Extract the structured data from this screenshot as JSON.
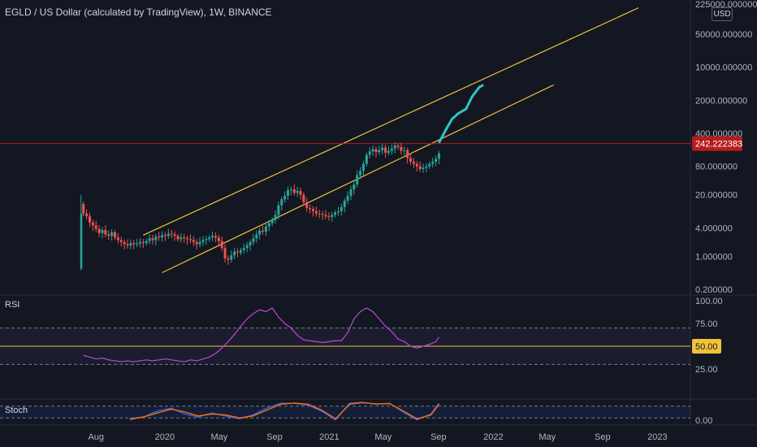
{
  "header": {
    "title": "EGLD / US Dollar (calculated by TradingView), 1W, BINANCE",
    "currency": "USD"
  },
  "colors": {
    "background": "#131722",
    "up_candle": "#26a69a",
    "down_candle": "#ef5350",
    "channel": "#f0c23b",
    "projection": "#2ec4c4",
    "price_line": "#b71c1c",
    "rsi_line": "#c048d8",
    "stoch_k": "#2962ff",
    "stoch_d": "#ff6d00",
    "axis_text": "#b2b5be"
  },
  "chart_data": [
    {
      "type": "candlestick",
      "title": "EGLD / US Dollar (calculated by TradingView), 1W, BINANCE",
      "y_scale": "log",
      "ylim": [
        0.2,
        225000
      ],
      "y_tick_labels": [
        "225000.000000",
        "50000.000000",
        "10000.000000",
        "2000.000000",
        "400.000000",
        "80.000000",
        "20.000000",
        "4.000000",
        "1.000000",
        "0.200000"
      ],
      "x_tick_labels": [
        "Aug",
        "2020",
        "May",
        "Sep",
        "2021",
        "May",
        "Sep",
        "2022",
        "May",
        "Sep",
        "2023"
      ],
      "last_price_label": "242.222383",
      "last_price": 242.22,
      "grid": false,
      "x_range": [
        "2019-06-20",
        "2023-03-01"
      ],
      "series": [
        {
          "kind": "candles",
          "x": [
            "2019-07-04",
            "2019-07-11",
            "2019-07-18",
            "2019-07-25",
            "2019-08-01",
            "2019-08-08",
            "2019-08-15",
            "2019-08-22",
            "2019-08-29",
            "2019-09-05",
            "2019-09-12",
            "2019-09-19",
            "2019-09-26",
            "2019-10-03",
            "2019-10-10",
            "2019-10-17",
            "2019-10-24",
            "2019-10-31",
            "2019-11-07",
            "2019-11-14",
            "2019-11-21",
            "2019-11-28",
            "2019-12-05",
            "2019-12-12",
            "2019-12-19",
            "2019-12-26",
            "2020-01-02",
            "2020-01-09",
            "2020-01-16",
            "2020-01-23",
            "2020-01-30",
            "2020-02-06",
            "2020-02-13",
            "2020-02-20",
            "2020-02-27",
            "2020-03-05",
            "2020-03-12",
            "2020-03-19",
            "2020-03-26",
            "2020-04-02",
            "2020-04-09",
            "2020-04-16",
            "2020-04-23",
            "2020-04-30",
            "2020-05-07",
            "2020-05-14",
            "2020-05-21",
            "2020-05-28",
            "2020-06-04",
            "2020-06-11",
            "2020-06-18",
            "2020-06-25",
            "2020-07-02",
            "2020-07-09",
            "2020-07-16",
            "2020-07-23",
            "2020-07-30",
            "2020-08-06",
            "2020-08-13",
            "2020-08-20",
            "2020-08-27",
            "2020-09-03",
            "2020-09-10",
            "2020-09-17",
            "2020-09-24",
            "2020-10-01",
            "2020-10-08",
            "2020-10-15",
            "2020-10-22",
            "2020-10-29",
            "2020-11-05",
            "2020-11-12",
            "2020-11-19",
            "2020-11-26",
            "2020-12-03",
            "2020-12-10",
            "2020-12-17",
            "2020-12-24",
            "2020-12-31",
            "2021-01-07",
            "2021-01-14",
            "2021-01-21",
            "2021-01-28",
            "2021-02-04",
            "2021-02-11",
            "2021-02-18",
            "2021-02-25",
            "2021-03-04",
            "2021-03-11",
            "2021-03-18",
            "2021-03-25",
            "2021-04-01",
            "2021-04-08",
            "2021-04-15",
            "2021-04-22",
            "2021-04-29",
            "2021-05-06",
            "2021-05-13",
            "2021-05-20",
            "2021-05-27",
            "2021-06-03",
            "2021-06-10",
            "2021-06-17",
            "2021-06-24",
            "2021-07-01",
            "2021-07-08",
            "2021-07-15",
            "2021-07-22",
            "2021-07-29",
            "2021-08-05",
            "2021-08-12",
            "2021-08-19",
            "2021-08-26",
            "2021-09-02"
          ],
          "close": [
            8.0,
            7.0,
            5.2,
            4.5,
            3.8,
            3.1,
            3.6,
            2.9,
            2.7,
            3.2,
            2.5,
            2.2,
            2.0,
            1.8,
            1.7,
            1.9,
            1.8,
            1.85,
            2.0,
            1.9,
            2.1,
            2.4,
            2.2,
            2.6,
            2.5,
            2.8,
            2.7,
            3.0,
            2.9,
            2.7,
            2.3,
            2.5,
            2.4,
            2.3,
            2.2,
            2.0,
            1.8,
            2.0,
            2.2,
            2.3,
            2.5,
            2.7,
            2.5,
            2.1,
            1.5,
            0.9,
            0.85,
            1.05,
            1.25,
            1.2,
            1.35,
            1.5,
            1.7,
            2.0,
            2.4,
            2.9,
            3.5,
            3.3,
            4.3,
            5.0,
            5.9,
            7.5,
            12.0,
            16.0,
            19.0,
            25.0,
            26.0,
            22.0,
            24.0,
            20.0,
            14.0,
            10.5,
            10.0,
            9.0,
            8.0,
            7.8,
            7.5,
            7.0,
            6.8,
            7.5,
            8.5,
            9.0,
            11.0,
            15.0,
            19.0,
            26.0,
            33.0,
            52.0,
            64.0,
            90.0,
            140.0,
            165.0,
            185.0,
            160.0,
            175.0,
            200.0,
            155.0,
            170.0,
            190.0,
            220.0,
            205.0,
            170.0,
            175.0,
            120.0,
            100.0,
            90.0,
            80.0,
            70.0,
            75.0,
            80.0,
            90.0,
            100.0,
            115.0,
            150.0
          ]
        },
        {
          "kind": "channel",
          "name": "",
          "upper": [
            [
              "2019-11-14",
              2.8
            ],
            [
              "2022-11-20",
              180000
            ]
          ],
          "lower": [
            [
              "2019-12-26",
              0.45
            ],
            [
              "2022-05-15",
              4200
            ]
          ]
        },
        {
          "kind": "projection",
          "name": "",
          "x": [
            "2021-09-02",
            "2021-09-16",
            "2021-10-01",
            "2021-10-15",
            "2021-11-01",
            "2021-11-15",
            "2021-12-01",
            "2021-12-10"
          ],
          "y": [
            250,
            450,
            800,
            1050,
            1300,
            2400,
            3800,
            4200
          ]
        }
      ]
    },
    {
      "type": "line",
      "label": "RSI",
      "ylim": [
        0,
        100
      ],
      "y_tick_labels": [
        "100.00",
        "75.00",
        "50.00",
        "25.00"
      ],
      "levels": [
        70,
        50,
        30
      ],
      "midline_label": "50.00",
      "series": [
        {
          "name": "",
          "x": [
            "2019-07-04",
            "2019-07-18",
            "2019-08-01",
            "2019-08-15",
            "2019-08-29",
            "2019-09-12",
            "2019-09-26",
            "2019-10-10",
            "2019-10-24",
            "2019-11-07",
            "2019-11-21",
            "2019-12-05",
            "2019-12-19",
            "2020-01-02",
            "2020-01-16",
            "2020-01-30",
            "2020-02-13",
            "2020-02-27",
            "2020-03-12",
            "2020-03-26",
            "2020-04-09",
            "2020-04-23",
            "2020-05-07",
            "2020-05-21",
            "2020-06-04",
            "2020-06-18",
            "2020-07-02",
            "2020-07-16",
            "2020-07-30",
            "2020-08-13",
            "2020-08-27",
            "2020-09-10",
            "2020-09-24",
            "2020-10-08",
            "2020-10-22",
            "2020-11-05",
            "2020-11-19",
            "2020-12-03",
            "2020-12-17",
            "2020-12-31",
            "2021-01-14",
            "2021-01-28",
            "2021-02-11",
            "2021-02-25",
            "2021-03-11",
            "2021-03-25",
            "2021-04-08",
            "2021-04-22",
            "2021-05-06",
            "2021-05-20",
            "2021-06-03",
            "2021-06-17",
            "2021-07-01",
            "2021-07-15",
            "2021-07-29",
            "2021-08-12",
            "2021-08-26",
            "2021-09-02"
          ],
          "values": [
            40,
            38,
            36,
            37,
            35,
            34,
            33,
            34,
            33,
            34,
            35,
            34,
            35,
            36,
            35,
            34,
            33,
            35,
            34,
            36,
            38,
            42,
            48,
            55,
            63,
            72,
            80,
            86,
            90,
            88,
            92,
            82,
            75,
            70,
            62,
            57,
            56,
            55,
            54,
            55,
            56,
            56,
            65,
            80,
            88,
            92,
            88,
            80,
            72,
            66,
            58,
            55,
            50,
            48,
            50,
            52,
            55,
            60
          ]
        }
      ]
    },
    {
      "type": "line",
      "label": "Stoch",
      "ylim": [
        0,
        100
      ],
      "y_tick_labels": [
        "0.00"
      ],
      "levels": [
        80,
        20
      ],
      "series": [
        {
          "name": "",
          "x": [
            "2019-10-15",
            "2019-11-15",
            "2019-12-15",
            "2020-01-15",
            "2020-02-15",
            "2020-03-15",
            "2020-04-15",
            "2020-05-15",
            "2020-06-15",
            "2020-07-15",
            "2020-08-15",
            "2020-09-15",
            "2020-10-15",
            "2020-11-15",
            "2020-12-15",
            "2021-01-15",
            "2021-02-15",
            "2021-03-15",
            "2021-04-15",
            "2021-05-15",
            "2021-06-15",
            "2021-07-15",
            "2021-08-15",
            "2021-09-02"
          ],
          "values": [
            10,
            25,
            55,
            70,
            40,
            25,
            45,
            30,
            15,
            35,
            70,
            95,
            95,
            85,
            55,
            10,
            95,
            100,
            90,
            95,
            50,
            10,
            40,
            95
          ]
        },
        {
          "name": "",
          "x": [
            "2019-10-15",
            "2019-11-15",
            "2019-12-15",
            "2020-01-15",
            "2020-02-15",
            "2020-03-15",
            "2020-04-15",
            "2020-05-15",
            "2020-06-15",
            "2020-07-15",
            "2020-08-15",
            "2020-09-15",
            "2020-10-15",
            "2020-11-15",
            "2020-12-15",
            "2021-01-15",
            "2021-02-15",
            "2021-03-15",
            "2021-04-15",
            "2021-05-15",
            "2021-06-15",
            "2021-07-15",
            "2021-08-15",
            "2021-09-02"
          ],
          "values": [
            15,
            25,
            45,
            65,
            50,
            30,
            40,
            35,
            20,
            30,
            60,
            90,
            96,
            90,
            60,
            15,
            90,
            98,
            92,
            93,
            55,
            15,
            35,
            90
          ]
        }
      ]
    }
  ]
}
